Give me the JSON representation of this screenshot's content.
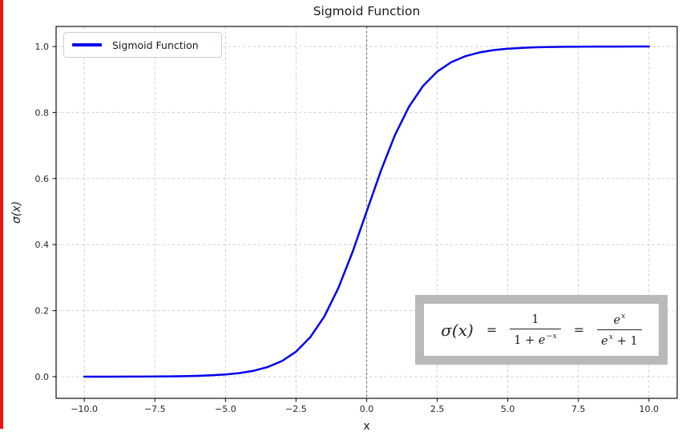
{
  "figure": {
    "background_color": "#ffffff",
    "left_marker_color": "#ee1111"
  },
  "chart_data": {
    "type": "line",
    "title": "Sigmoid Function",
    "xlabel": "x",
    "ylabel": "σ(x)",
    "xlim": [
      -11,
      11
    ],
    "ylim": [
      -0.0655,
      1.0607
    ],
    "grid": true,
    "grid_style": "dashed",
    "legend": {
      "label": "Sigmoid Function",
      "position": "upper-left"
    },
    "xticks": {
      "values": [
        -10,
        -7.5,
        -5,
        -2.5,
        0,
        2.5,
        5,
        7.5,
        10
      ],
      "labels": [
        "−10.0",
        "−7.5",
        "−5.0",
        "−2.5",
        "0.0",
        "2.5",
        "5.0",
        "7.5",
        "10.0"
      ]
    },
    "yticks": {
      "values": [
        0,
        0.2,
        0.4,
        0.6,
        0.8,
        1.0
      ],
      "labels": [
        "0.0",
        "0.2",
        "0.4",
        "0.6",
        "0.8",
        "1.0"
      ]
    },
    "reference_lines": [
      {
        "axis": "x",
        "value": 0,
        "color": "#7d7d7d",
        "style": "dashed"
      }
    ],
    "series": [
      {
        "name": "Sigmoid Function",
        "color": "#0000f0",
        "linewidth": 2.5,
        "x": [
          -10,
          -9.5,
          -9,
          -8.5,
          -8,
          -7.5,
          -7,
          -6.5,
          -6,
          -5.5,
          -5,
          -4.5,
          -4,
          -3.5,
          -3,
          -2.5,
          -2,
          -1.5,
          -1,
          -0.5,
          0,
          0.5,
          1,
          1.5,
          2,
          2.5,
          3,
          3.5,
          4,
          4.5,
          5,
          5.5,
          6,
          6.5,
          7,
          7.5,
          8,
          8.5,
          9,
          9.5,
          10
        ],
        "y": [
          4.5e-05,
          7.5e-05,
          0.000123,
          0.000203,
          0.000335,
          0.000553,
          0.000911,
          0.001503,
          0.002473,
          0.00407,
          0.006693,
          0.010987,
          0.017986,
          0.029312,
          0.047426,
          0.075858,
          0.119203,
          0.182426,
          0.268941,
          0.377541,
          0.5,
          0.622459,
          0.731059,
          0.817574,
          0.880797,
          0.924142,
          0.952574,
          0.970688,
          0.982014,
          0.989013,
          0.993307,
          0.99593,
          0.997527,
          0.998497,
          0.999089,
          0.999447,
          0.999665,
          0.999797,
          0.999877,
          0.999925,
          0.999955
        ]
      }
    ]
  },
  "formula": {
    "lhs": "σ(x)",
    "equals": "=",
    "frac1": {
      "num": "1",
      "den_pre": "1 + ",
      "den_base": "e",
      "den_sup": "−x"
    },
    "frac2": {
      "num_base": "e",
      "num_sup": "x",
      "den_base": "e",
      "den_sup": "x",
      "den_post": " + 1"
    }
  }
}
